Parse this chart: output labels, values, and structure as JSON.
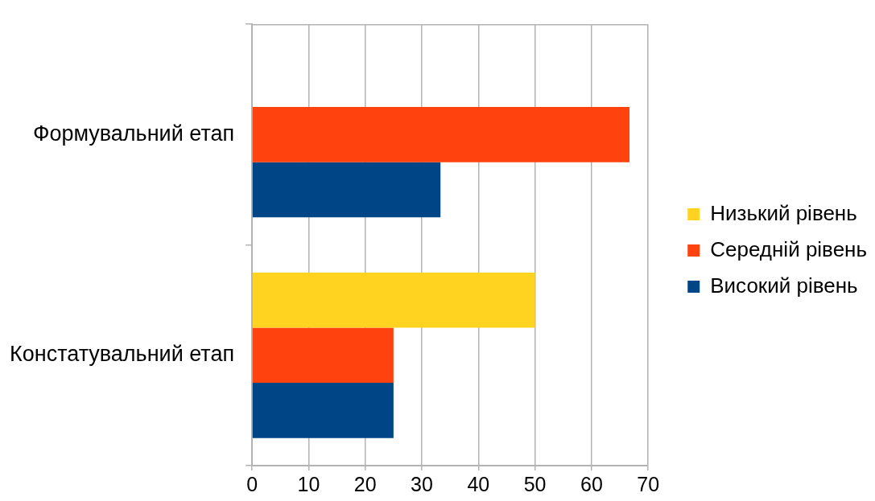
{
  "chart_data": {
    "type": "bar",
    "orientation": "horizontal",
    "categories": [
      "Формувальний етап",
      "Констатувальний етап"
    ],
    "series": [
      {
        "name": "Низький рівень",
        "color": "#ffd320",
        "values": [
          0,
          50
        ]
      },
      {
        "name": "Середній рівень",
        "color": "#ff420e",
        "values": [
          66.7,
          25
        ]
      },
      {
        "name": "Високий рівень",
        "color": "#004586",
        "values": [
          33.3,
          25
        ]
      }
    ],
    "xlim": [
      0,
      70
    ],
    "xticks": [
      0,
      10,
      20,
      30,
      40,
      50,
      60,
      70
    ],
    "grid": "x",
    "legend": "right"
  }
}
